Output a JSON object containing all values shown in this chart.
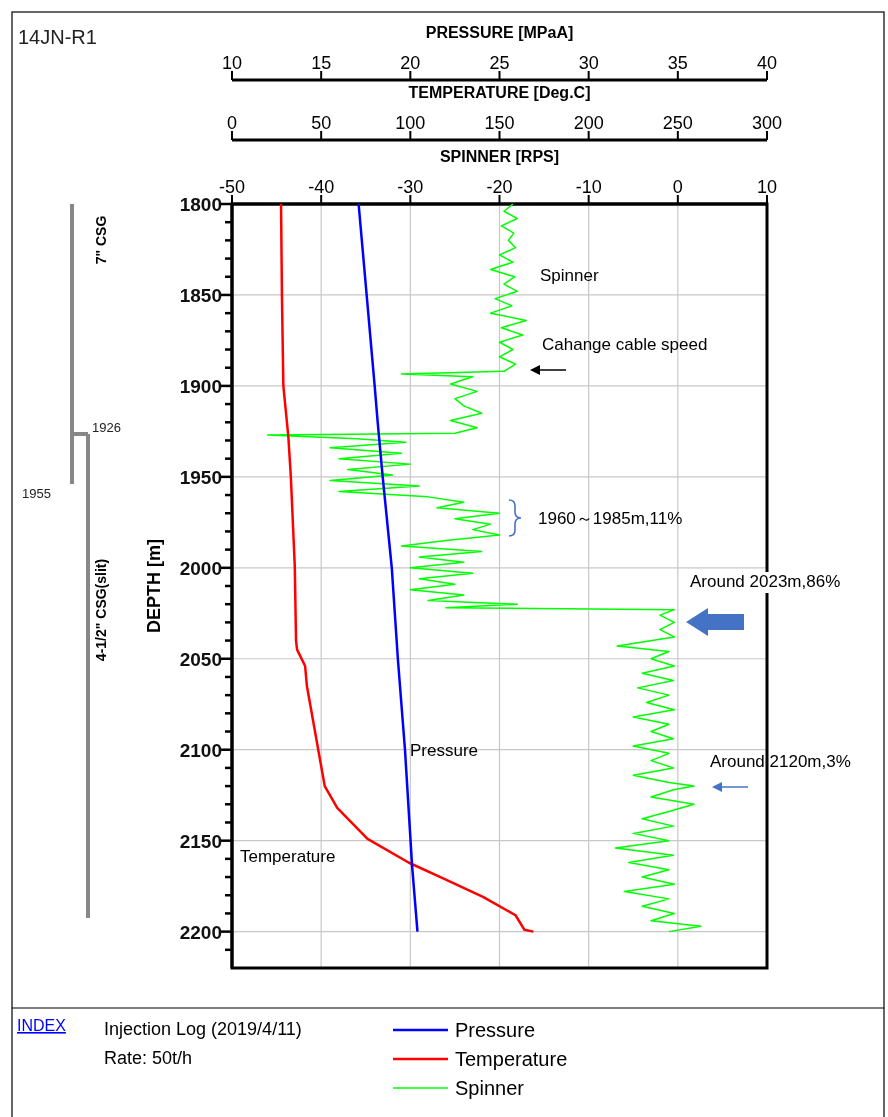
{
  "chart_data": [
    {
      "type": "line",
      "xlabel": "PRESSURE [MPaA]",
      "xlim": [
        10,
        40
      ],
      "xticks": [
        10,
        15,
        20,
        25,
        30,
        35,
        40
      ],
      "ylim": [
        2220,
        1800
      ],
      "tick_labels": "x",
      "legend": "bottom",
      "line_style": "solid",
      "series": [
        {
          "name": "Pressure",
          "color": "#0000ff",
          "x": [
            17.1,
            17.55,
            18.0,
            18.17,
            18.45,
            18.96,
            19.3,
            19.7,
            20.1,
            20.4
          ],
          "values": [
            1800,
            1850,
            1900,
            1920,
            1950,
            2000,
            2050,
            2100,
            2164,
            2200
          ]
        }
      ]
    },
    {
      "type": "line",
      "xlabel": "TEMPERATURE [Deg.C]",
      "xlim": [
        0,
        300
      ],
      "xticks": [
        0,
        50,
        100,
        150,
        200,
        250,
        300
      ],
      "ylim": [
        2220,
        1800
      ],
      "tick_labels": "x",
      "legend": "bottom",
      "line_style": "solid",
      "series": [
        {
          "name": "Temperature",
          "color": "#ff0000",
          "x": [
            27.5,
            28,
            28.8,
            31.6,
            33,
            35.2,
            35.9,
            36.5,
            41,
            42,
            52,
            59,
            76,
            99,
            119,
            141,
            159,
            164,
            169
          ],
          "values": [
            1800,
            1850,
            1900,
            1928,
            1950,
            1999,
            2040,
            2045,
            2054,
            2065,
            2120,
            2132,
            2149,
            2162,
            2171,
            2181,
            2191,
            2199,
            2200
          ]
        }
      ]
    },
    {
      "type": "line",
      "title": "14JN-R1",
      "xlabel": "SPINNER [RPS]",
      "ylabel": "DEPTH [m]",
      "xlim": [
        -50,
        10
      ],
      "xticks": [
        -50,
        -40,
        -30,
        -20,
        -10,
        0,
        10
      ],
      "ylim": [
        2220,
        1800
      ],
      "yticks": [
        1800,
        {
          "value": 1810,
          "label": null
        },
        {
          "value": 1820,
          "label": null
        },
        {
          "value": 1830,
          "label": null
        },
        {
          "value": 1840,
          "label": null
        },
        1850,
        {
          "value": 1860,
          "label": null
        },
        {
          "value": 1870,
          "label": null
        },
        {
          "value": 1880,
          "label": null
        },
        {
          "value": 1890,
          "label": null
        },
        1900,
        {
          "value": 1910,
          "label": null
        },
        {
          "value": 1920,
          "label": null
        },
        {
          "value": 1930,
          "label": null
        },
        {
          "value": 1940,
          "label": null
        },
        1950,
        {
          "value": 1960,
          "label": null
        },
        {
          "value": 1970,
          "label": null
        },
        {
          "value": 1980,
          "label": null
        },
        {
          "value": 1990,
          "label": null
        },
        2000,
        {
          "value": 2010,
          "label": null
        },
        {
          "value": 2020,
          "label": null
        },
        {
          "value": 2030,
          "label": null
        },
        {
          "value": 2040,
          "label": null
        },
        2050,
        {
          "value": 2060,
          "label": null
        },
        {
          "value": 2070,
          "label": null
        },
        {
          "value": 2080,
          "label": null
        },
        {
          "value": 2090,
          "label": null
        },
        2100,
        {
          "value": 2110,
          "label": null
        },
        {
          "value": 2120,
          "label": null
        },
        {
          "value": 2130,
          "label": null
        },
        {
          "value": 2140,
          "label": null
        },
        2150,
        {
          "value": 2160,
          "label": null
        },
        {
          "value": 2170,
          "label": null
        },
        {
          "value": 2180,
          "label": null
        },
        {
          "value": 2190,
          "label": null
        },
        2200,
        {
          "value": 2210,
          "label": null
        }
      ],
      "grid": true,
      "legend": "bottom",
      "line_style": "solid",
      "series": [
        {
          "name": "Spinner",
          "color": "#00ff00",
          "x": [
            -18.5,
            -19.5,
            -18,
            -19.8,
            -18.4,
            -19,
            -18.2,
            -20,
            -18.5,
            -21,
            -18.3,
            -19.5,
            -18,
            -20.5,
            -18.6,
            -21,
            -17,
            -19.8,
            -17.4,
            -20,
            -18.5,
            -20,
            -18.2,
            -19.5,
            -31,
            -23,
            -25.5,
            -22.5,
            -25,
            -24,
            -22,
            -25.5,
            -22.5,
            -25,
            -46,
            -36,
            -30.5,
            -39,
            -31,
            -38,
            -30,
            -37,
            -32,
            -39,
            -29,
            -38,
            -28,
            -24,
            -27,
            -20,
            -25,
            -21,
            -23,
            -20,
            -26,
            -31,
            -22,
            -29,
            -24,
            -30,
            -23,
            -29,
            -25,
            -30,
            -24,
            -28,
            -18,
            -26,
            -0.4,
            -2,
            -0.4,
            -2,
            -0.4,
            -6.8,
            -1,
            -3,
            -0.4,
            -4,
            -0.5,
            -4.5,
            -1,
            -3.5,
            -0.4,
            -5,
            -1,
            -3,
            -0.5,
            -5,
            -1,
            -3,
            -0.5,
            -5,
            -1,
            1.8,
            -0.5,
            -3,
            1.8,
            -1,
            -4,
            -0.5,
            -5,
            -1,
            -7,
            -0.5,
            -5.5,
            -1,
            -4,
            -0.4,
            -6,
            -1,
            -4,
            -0.4,
            -3,
            2.6,
            -1
          ],
          "values": [
            1800,
            1804,
            1808,
            1812,
            1816,
            1820,
            1824,
            1828,
            1832,
            1836,
            1840,
            1844,
            1848,
            1852,
            1856,
            1860,
            1864,
            1868,
            1872,
            1876,
            1880,
            1884,
            1888,
            1892,
            1893.5,
            1895,
            1899,
            1903,
            1907,
            1911,
            1915,
            1919,
            1923,
            1926,
            1927,
            1929,
            1931,
            1934,
            1937,
            1940,
            1943,
            1946,
            1949,
            1952,
            1955,
            1958,
            1961,
            1964,
            1967,
            1970,
            1973,
            1976,
            1979,
            1982,
            1985,
            1988,
            1991,
            1994,
            1997,
            2000,
            2003,
            2006,
            2009,
            2012,
            2015,
            2018,
            2020,
            2022,
            2023,
            2026,
            2030,
            2034,
            2038,
            2043,
            2046,
            2050,
            2054,
            2058,
            2062,
            2066,
            2070,
            2074,
            2078,
            2082,
            2086,
            2090,
            2094,
            2098,
            2102,
            2106,
            2110,
            2114,
            2118,
            2120,
            2122,
            2126,
            2130,
            2134,
            2138,
            2142,
            2146,
            2150,
            2154,
            2158,
            2162,
            2166,
            2170,
            2174,
            2178,
            2182,
            2186,
            2190,
            2194,
            2197,
            2200
          ]
        }
      ],
      "annotations": [
        "Spinner",
        "Cahange cable speed",
        "1960～1985m,11%",
        "Around 2023m,86%",
        "Around 2120m,3%",
        "Pressure",
        "Temperature",
        "7\" CSG",
        "4-1/2\" CSG(slit)",
        "1926",
        "1955",
        "INDEX",
        "Injection Log (2019/4/11)",
        "Rate: 50t/h"
      ]
    }
  ]
}
